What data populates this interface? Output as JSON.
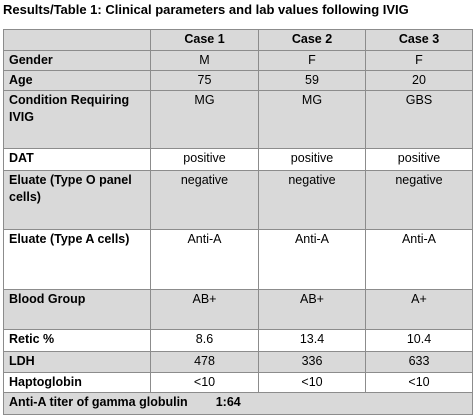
{
  "title": "Results/Table 1: Clinical parameters and lab values following IVIG",
  "headers": [
    "",
    "Case 1",
    "Case 2",
    "Case 3"
  ],
  "rows": [
    {
      "label": "Gender",
      "values": [
        "M",
        "F",
        "F"
      ]
    },
    {
      "label": "Age",
      "values": [
        "75",
        "59",
        "20"
      ]
    },
    {
      "label": "Condition Requiring IVIG",
      "values": [
        "MG",
        "MG",
        "GBS"
      ]
    },
    {
      "label": "DAT",
      "values": [
        "positive",
        "positive",
        "positive"
      ]
    },
    {
      "label": "Eluate (Type O panel cells)",
      "values": [
        "negative",
        "negative",
        "negative"
      ]
    },
    {
      "label": "Eluate (Type A cells)",
      "values": [
        "Anti-A",
        "Anti-A",
        "Anti-A"
      ]
    },
    {
      "label": "Blood Group",
      "values": [
        "AB+",
        "AB+",
        "A+"
      ]
    },
    {
      "label": "Retic %",
      "values": [
        "8.6",
        "13.4",
        "10.4"
      ]
    },
    {
      "label": "LDH",
      "values": [
        "478",
        "336",
        "633"
      ]
    },
    {
      "label": "Haptoglobin",
      "values": [
        "<10",
        "<10",
        "<10"
      ]
    }
  ],
  "footer": {
    "label": "Anti-A titer of gamma globulin",
    "value": "1:64"
  }
}
